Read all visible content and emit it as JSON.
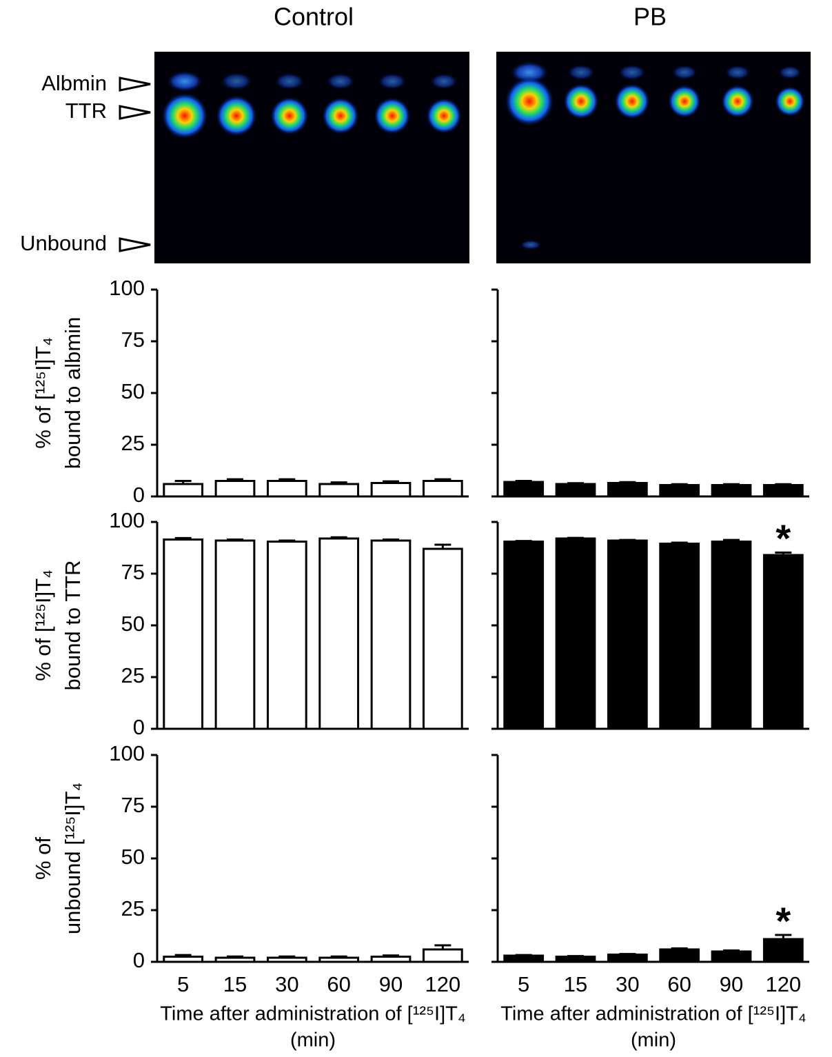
{
  "panels": {
    "titles": [
      "Control",
      "PB"
    ],
    "gel_labels": [
      "Albmin",
      "TTR",
      "Unbound"
    ]
  },
  "chart_data": [
    {
      "type": "bar",
      "ylabel": [
        "% of [¹²⁵I]T₄",
        "bound to albmin"
      ],
      "ylim": [
        0,
        100
      ],
      "yticks": [
        0,
        25,
        50,
        75,
        100
      ],
      "ytick_labels": true,
      "categories": [
        null,
        null,
        null,
        null,
        null,
        null
      ],
      "values": [
        6,
        7.5,
        7.5,
        6,
        6.5,
        7.5
      ],
      "errors": [
        1.5,
        0.8,
        0.8,
        0.8,
        0.8,
        0.8
      ],
      "color": "#ffffff",
      "edgecolor": "#000000"
    },
    {
      "type": "bar",
      "ylim": [
        0,
        100
      ],
      "yticks": [
        0,
        25,
        50,
        75,
        100
      ],
      "ytick_labels": false,
      "categories": [
        null,
        null,
        null,
        null,
        null,
        null
      ],
      "values": [
        7,
        6,
        6.5,
        5.5,
        5.5,
        5.5
      ],
      "errors": [
        0.5,
        0.4,
        0.4,
        0.4,
        0.4,
        0.4
      ],
      "color": "#000000",
      "edgecolor": "#000000"
    },
    {
      "type": "bar",
      "ylabel": [
        "% of [¹²⁵I]T₄",
        "bound to TTR"
      ],
      "ylim": [
        0,
        100
      ],
      "yticks": [
        0,
        25,
        50,
        75,
        100
      ],
      "ytick_labels": true,
      "categories": [
        null,
        null,
        null,
        null,
        null,
        null
      ],
      "values": [
        91.5,
        91,
        90.5,
        92,
        91,
        87
      ],
      "errors": [
        0.7,
        0.5,
        0.5,
        0.6,
        0.5,
        2
      ],
      "color": "#ffffff",
      "edgecolor": "#000000"
    },
    {
      "type": "bar",
      "ylim": [
        0,
        100
      ],
      "yticks": [
        0,
        25,
        50,
        75,
        100
      ],
      "ytick_labels": false,
      "categories": [
        null,
        null,
        null,
        null,
        null,
        null
      ],
      "values": [
        90.5,
        92,
        91,
        89.5,
        90.5,
        84
      ],
      "errors": [
        0.3,
        0.3,
        0.3,
        0.5,
        0.8,
        1.2
      ],
      "color": "#000000",
      "edgecolor": "#000000",
      "annotations": [
        {
          "index": 5,
          "text": "*"
        }
      ]
    },
    {
      "type": "bar",
      "ylabel": [
        "% of",
        "unbound [¹²⁵I]T₄"
      ],
      "ylim": [
        0,
        100
      ],
      "yticks": [
        0,
        25,
        50,
        75,
        100
      ],
      "ytick_labels": true,
      "categories": [
        "5",
        "15",
        "30",
        "60",
        "90",
        "120"
      ],
      "values": [
        2.5,
        2,
        2,
        2,
        2.5,
        6
      ],
      "errors": [
        0.8,
        0.6,
        0.6,
        0.6,
        0.6,
        2
      ],
      "color": "#ffffff",
      "edgecolor": "#000000",
      "xlabel": [
        "Time after administration of [¹²⁵I]T₄",
        "(min)"
      ]
    },
    {
      "type": "bar",
      "ylim": [
        0,
        100
      ],
      "yticks": [
        0,
        25,
        50,
        75,
        100
      ],
      "ytick_labels": false,
      "categories": [
        "5",
        "15",
        "30",
        "60",
        "90",
        "120"
      ],
      "values": [
        3,
        2.5,
        3.5,
        6,
        5,
        11
      ],
      "errors": [
        0.3,
        0.3,
        0.3,
        0.5,
        0.5,
        2
      ],
      "color": "#000000",
      "edgecolor": "#000000",
      "xlabel": [
        "Time after administration of [¹²⁵I]T₄",
        "(min)"
      ],
      "annotations": [
        {
          "index": 5,
          "text": "*"
        }
      ]
    }
  ]
}
